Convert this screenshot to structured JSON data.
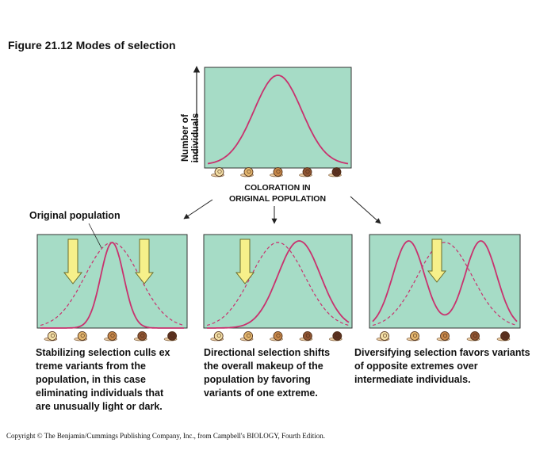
{
  "title": "Figure 21.12  Modes of selection",
  "top_panel": {
    "y_axis_label": [
      "Number of",
      "individuals"
    ],
    "x_axis_label": [
      "COLORATION IN",
      "ORIGINAL POPULATION"
    ]
  },
  "original_population_label": "Original population",
  "panels": [
    {
      "caption": [
        "Stabilizing selection culls ex",
        "treme variants from the",
        "population, in this case",
        "eliminating individuals that",
        "are unusually light or dark."
      ]
    },
    {
      "caption": [
        "Directional selection shifts",
        "the overall makeup of the",
        "population by favoring",
        "variants of one extreme."
      ]
    },
    {
      "caption": [
        "Diversifying selection favors variants",
        "of opposite extremes over",
        "intermediate individuals."
      ]
    }
  ],
  "copyright": "Copyright © The Benjamin/Cummings Publishing Company, Inc., from Campbell's BIOLOGY, Fourth Edition."
}
